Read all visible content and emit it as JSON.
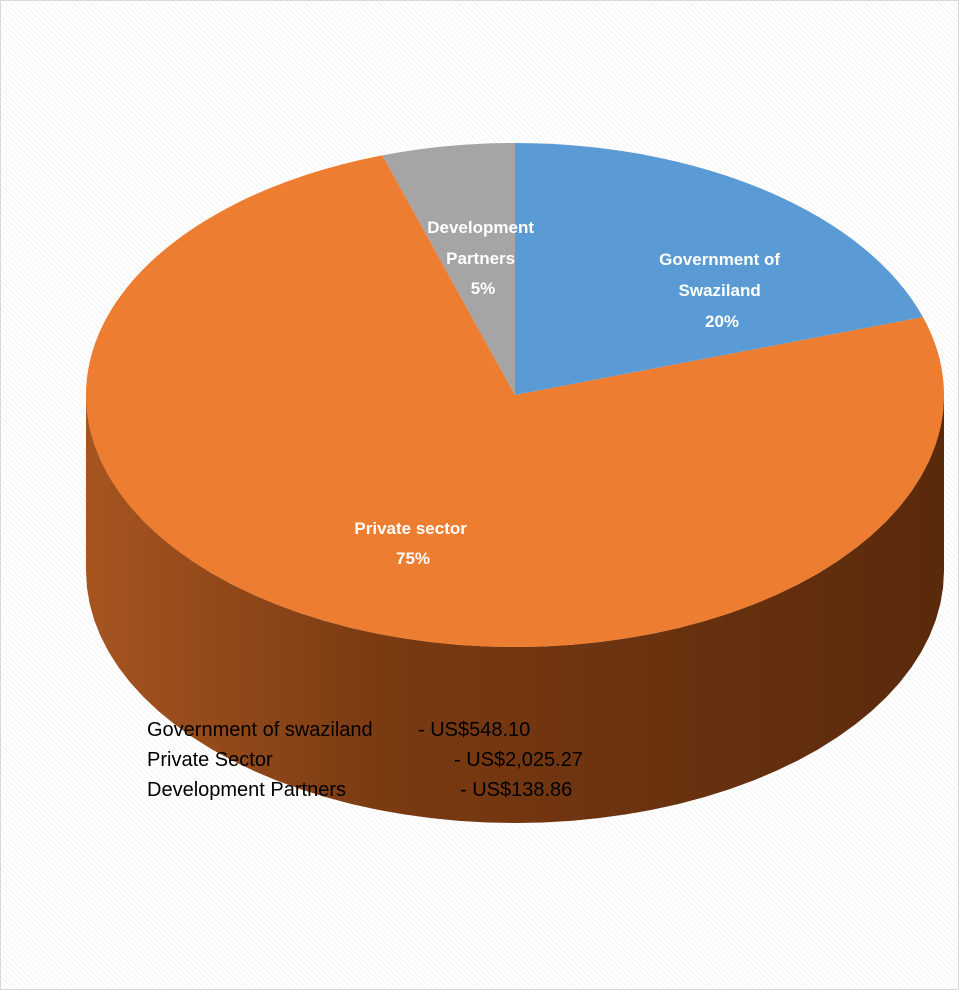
{
  "chart_data": {
    "type": "pie",
    "style": "3d",
    "slices": [
      {
        "label_line1": "Government of",
        "label_line2": "Swaziland",
        "percent_label": "20%",
        "value": 20,
        "color": "#5b9bd5",
        "side_color": "#2e5f8c"
      },
      {
        "label_line1": "Private sector",
        "label_line2": "",
        "percent_label": "75%",
        "value": 75,
        "color": "#ed7d31",
        "side_color": "#7a3a12"
      },
      {
        "label_line1": "Development",
        "label_line2": "Partners",
        "percent_label": "5%",
        "value": 5,
        "color": "#a5a5a5",
        "side_color": "#5c5c5c"
      }
    ],
    "data_label_color": "#ffffff"
  },
  "legend_text": [
    {
      "name": "Government of swaziland",
      "amount": "- US$548.10"
    },
    {
      "name": "Private Sector",
      "amount": "- US$2,025.27"
    },
    {
      "name": "Development Partners",
      "amount": "- US$138.86"
    }
  ]
}
